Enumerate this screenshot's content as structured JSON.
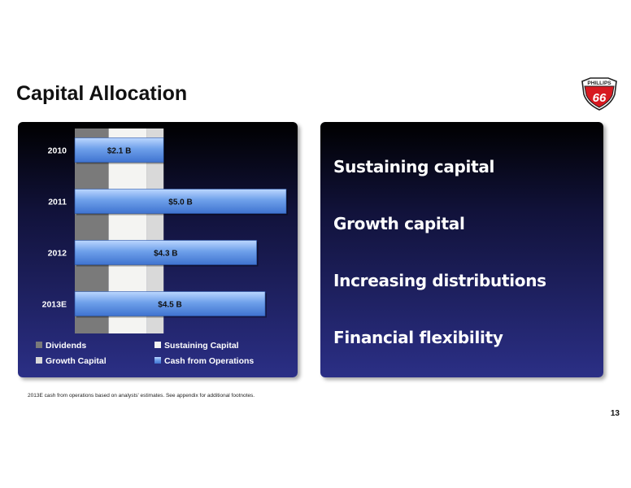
{
  "slide": {
    "title": "Capital Allocation",
    "page_number": "13",
    "footnote": "2013E cash from operations based on analysts' estimates. See appendix for additional footnotes."
  },
  "logo": {
    "text_top": "PHILLIPS",
    "text_main": "66",
    "color": "#d71920"
  },
  "bullets": [
    "Sustaining capital",
    "Growth capital",
    "Increasing distributions",
    "Financial flexibility"
  ],
  "colors": {
    "panel_top": "#000000",
    "panel_bottom": "#2b2f86",
    "dividends": "#7a7a7a",
    "sustaining_capital": "#f4f4f2",
    "growth_capital": "#d9d9d9",
    "cash_from_operations": "#6ea0ea"
  },
  "chart_data": {
    "type": "bar",
    "orientation": "horizontal",
    "categories": [
      "2010",
      "2011",
      "2012",
      "2013E"
    ],
    "series": [
      {
        "name": "Dividends",
        "values": [
          0.8,
          0.8,
          0.8,
          0.8
        ]
      },
      {
        "name": "Sustaining Capital",
        "values": [
          0.9,
          0.9,
          0.9,
          0.9
        ]
      },
      {
        "name": "Growth Capital",
        "values": [
          0.4,
          0.4,
          0.4,
          0.4
        ]
      },
      {
        "name": "Cash from Operations",
        "values": [
          2.1,
          5.0,
          4.3,
          4.5
        ],
        "labels": [
          "$2.1 B",
          "$5.0 B",
          "$4.3 B",
          "$4.5 B"
        ]
      }
    ],
    "xlim": [
      0,
      5.0
    ],
    "legend": "bottom",
    "grid": false
  }
}
